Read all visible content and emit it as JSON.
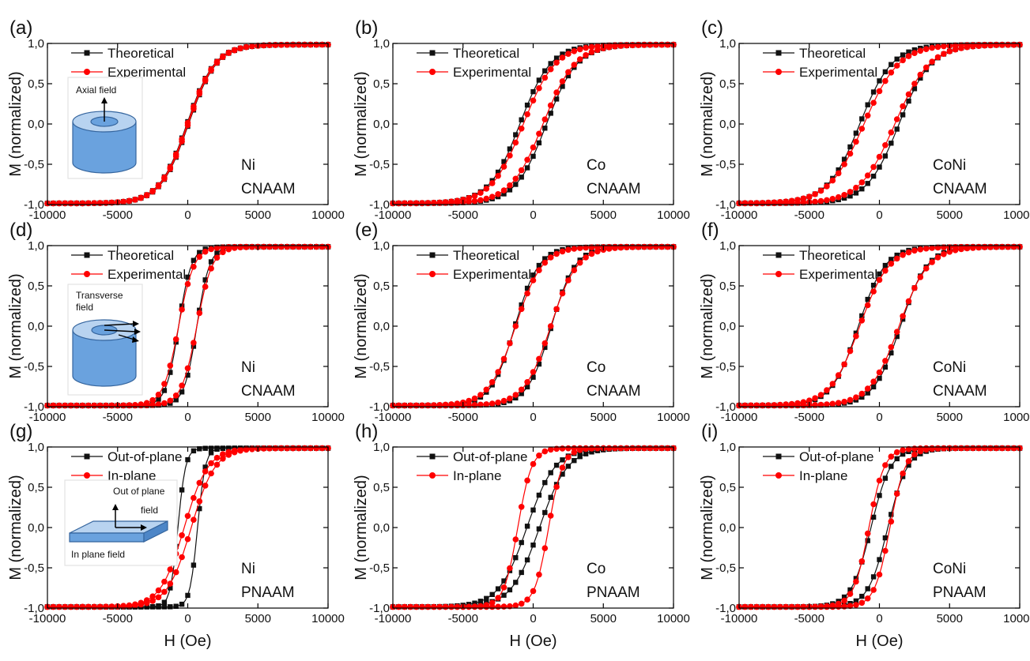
{
  "figure": {
    "xlabel": "H (Oe)",
    "ylabel": "M (normalized)"
  },
  "colors": {
    "theory": "#111111",
    "experiment": "#ff0000"
  },
  "insets": {
    "axial": "Axial field",
    "transverse_1": "Transverse",
    "transverse_2": "field",
    "oop_1": "Out of plane",
    "oop_2": "field",
    "ip": "In plane field"
  },
  "chart_data": [
    {
      "type": "line",
      "panel": "(a)",
      "material": "Ni",
      "template": "CNAAM",
      "series": [
        {
          "name": "Theoretical",
          "coercivity": 60,
          "width": 2000
        },
        {
          "name": "Experimental",
          "coercivity": 30,
          "width": 2000
        }
      ],
      "xlim": [
        -10000,
        10000
      ],
      "ylim": [
        -1,
        1
      ],
      "xticks": [
        "-10000",
        "-5000",
        "0",
        "5000",
        "10000"
      ],
      "yticks": [
        "1,0",
        "0,5",
        "0,0",
        "-0,5",
        "-1,0"
      ],
      "xlabel": "",
      "ylabel": "M (normalized)",
      "grid": false,
      "legend": "top-left"
    },
    {
      "type": "line",
      "panel": "(b)",
      "material": "Co",
      "template": "CNAAM",
      "series": [
        {
          "name": "Theoretical",
          "coercivity": 950,
          "width": 2200
        },
        {
          "name": "Experimental",
          "coercivity": 700,
          "width": 2300
        }
      ],
      "xlim": [
        -10000,
        10000
      ],
      "ylim": [
        -1,
        1
      ],
      "xticks": [
        "-10000",
        "-5000",
        "0",
        "5000",
        "10000"
      ],
      "yticks": [
        "1,0",
        "0,5",
        "0,0",
        "-0,5",
        "-1,0"
      ],
      "xlabel": "",
      "ylabel": "M (normalized)",
      "grid": false,
      "legend": "top-left"
    },
    {
      "type": "line",
      "panel": "(c)",
      "material": "CoNi",
      "template": "CNAAM",
      "series": [
        {
          "name": "Theoretical",
          "coercivity": 1400,
          "width": 2300
        },
        {
          "name": "Experimental",
          "coercivity": 1100,
          "width": 2500
        }
      ],
      "xlim": [
        -10000,
        10000
      ],
      "ylim": [
        -1,
        1
      ],
      "xticks": [
        "-10000",
        "-5000",
        "0",
        "5000",
        "10000"
      ],
      "yticks": [
        "1,0",
        "0,5",
        "0,0",
        "-0,5",
        "-1,0"
      ],
      "xlabel": "",
      "ylabel": "M (normalized)",
      "grid": false,
      "legend": "top-left"
    },
    {
      "type": "line",
      "panel": "(d)",
      "material": "Ni",
      "template": "CNAAM",
      "series": [
        {
          "name": "Theoretical",
          "coercivity": 650,
          "width": 900
        },
        {
          "name": "Experimental",
          "coercivity": 650,
          "width": 1100
        }
      ],
      "xlim": [
        -10000,
        10000
      ],
      "ylim": [
        -1,
        1
      ],
      "xticks": [
        "-10000",
        "-5000",
        "0",
        "5000",
        "10000"
      ],
      "yticks": [
        "1,0",
        "0,5",
        "0,0",
        "-0,5",
        "-1,0"
      ],
      "xlabel": "",
      "ylabel": "M (normalized)",
      "grid": false,
      "legend": "top-left"
    },
    {
      "type": "line",
      "panel": "(e)",
      "material": "Co",
      "template": "CNAAM",
      "series": [
        {
          "name": "Theoretical",
          "coercivity": 1300,
          "width": 1700
        },
        {
          "name": "Experimental",
          "coercivity": 1250,
          "width": 1900
        }
      ],
      "xlim": [
        -10000,
        10000
      ],
      "ylim": [
        -1,
        1
      ],
      "xticks": [
        "-10000",
        "-5000",
        "0",
        "5000",
        "10000"
      ],
      "yticks": [
        "1,0",
        "0,5",
        "0,0",
        "-0,5",
        "-1,0"
      ],
      "xlabel": "",
      "ylabel": "M (normalized)",
      "grid": false,
      "legend": "top-left"
    },
    {
      "type": "line",
      "panel": "(f)",
      "material": "CoNi",
      "template": "CNAAM",
      "series": [
        {
          "name": "Theoretical",
          "coercivity": 1500,
          "width": 1900
        },
        {
          "name": "Experimental",
          "coercivity": 1400,
          "width": 2100
        }
      ],
      "xlim": [
        -10000,
        10000
      ],
      "ylim": [
        -1,
        1
      ],
      "xticks": [
        "-10000",
        "-5000",
        "0",
        "5000",
        "10000"
      ],
      "yticks": [
        "1,0",
        "0,5",
        "0,0",
        "-0,5",
        "-1,0"
      ],
      "xlabel": "",
      "ylabel": "M (normalized)",
      "grid": false,
      "legend": "top-left"
    },
    {
      "type": "line",
      "panel": "(g)",
      "material": "Ni",
      "template": "PNAAM",
      "series": [
        {
          "name": "Out-of-plane",
          "coercivity": 700,
          "width": 550
        },
        {
          "name": "In-plane",
          "coercivity": 250,
          "width": 1700
        }
      ],
      "xlim": [
        -10000,
        10000
      ],
      "ylim": [
        -1,
        1
      ],
      "xticks": [
        "-10000",
        "-5000",
        "0",
        "5000",
        "10000"
      ],
      "yticks": [
        "1,0",
        "0,5",
        "0,0",
        "-0,5",
        "-1,0"
      ],
      "xlabel": "H (Oe)",
      "ylabel": "M (normalized)",
      "grid": false,
      "legend": "top-left"
    },
    {
      "type": "line",
      "panel": "(h)",
      "material": "Co",
      "template": "PNAAM",
      "series": [
        {
          "name": "Out-of-plane",
          "coercivity": 450,
          "width": 2000
        },
        {
          "name": "In-plane",
          "coercivity": 1100,
          "width": 1000
        }
      ],
      "xlim": [
        -10000,
        10000
      ],
      "ylim": [
        -1,
        1
      ],
      "xticks": [
        "-10000",
        "-5000",
        "0",
        "5000",
        "10000"
      ],
      "yticks": [
        "1,0",
        "0,5",
        "0,0",
        "-0,5",
        "-1,0"
      ],
      "xlabel": "H (Oe)",
      "ylabel": "M (normalized)",
      "grid": false,
      "legend": "top-left"
    },
    {
      "type": "line",
      "panel": "(i)",
      "material": "CoNi",
      "template": "PNAAM",
      "series": [
        {
          "name": "Out-of-plane",
          "coercivity": 600,
          "width": 1400
        },
        {
          "name": "In-plane",
          "coercivity": 750,
          "width": 1100
        }
      ],
      "xlim": [
        -10000,
        10000
      ],
      "ylim": [
        -1,
        1
      ],
      "xticks": [
        "-10000",
        "-5000",
        "0",
        "5000",
        "10000"
      ],
      "yticks": [
        "1,0",
        "0,5",
        "0,0",
        "-0,5",
        "-1,0"
      ],
      "xlabel": "H (Oe)",
      "ylabel": "M (normalized)",
      "grid": false,
      "legend": "top-left"
    }
  ]
}
